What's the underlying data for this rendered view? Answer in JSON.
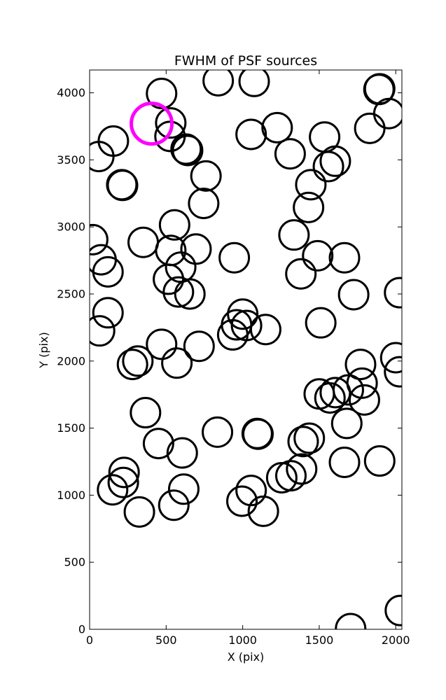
{
  "chart_data": {
    "type": "scatter",
    "title": "FWHM of PSF sources",
    "xlabel": "X (pix)",
    "ylabel": "Y (pix)",
    "xlim": [
      0,
      2040
    ],
    "ylim": [
      0,
      4170
    ],
    "xticks": [
      0,
      500,
      1000,
      1500,
      2000
    ],
    "yticks": [
      0,
      500,
      1000,
      1500,
      2000,
      2500,
      3000,
      3500,
      4000
    ],
    "marker": "open-circle",
    "grid": false,
    "colors": {
      "normal": "#000000",
      "highlight": "#ff00ff"
    },
    "highlight": {
      "x": 405,
      "y": 3770
    },
    "points": [
      [
        470,
        3995
      ],
      [
        840,
        4090
      ],
      [
        1075,
        4085
      ],
      [
        1890,
        4025
      ],
      [
        1895,
        4030
      ],
      [
        155,
        3640
      ],
      [
        60,
        3525
      ],
      [
        525,
        3675
      ],
      [
        530,
        3775
      ],
      [
        630,
        3580
      ],
      [
        640,
        3570
      ],
      [
        1055,
        3690
      ],
      [
        1225,
        3740
      ],
      [
        1310,
        3545
      ],
      [
        1535,
        3670
      ],
      [
        1830,
        3735
      ],
      [
        1955,
        3845
      ],
      [
        1560,
        3450
      ],
      [
        1605,
        3490
      ],
      [
        210,
        3315
      ],
      [
        215,
        3310
      ],
      [
        760,
        3380
      ],
      [
        1445,
        3315
      ],
      [
        745,
        3175
      ],
      [
        1430,
        3145
      ],
      [
        555,
        3015
      ],
      [
        20,
        2905
      ],
      [
        350,
        2885
      ],
      [
        530,
        2825
      ],
      [
        695,
        2835
      ],
      [
        1335,
        2940
      ],
      [
        945,
        2770
      ],
      [
        1490,
        2785
      ],
      [
        1665,
        2770
      ],
      [
        75,
        2755
      ],
      [
        120,
        2665
      ],
      [
        595,
        2700
      ],
      [
        515,
        2610
      ],
      [
        580,
        2515
      ],
      [
        655,
        2500
      ],
      [
        1380,
        2650
      ],
      [
        1725,
        2495
      ],
      [
        2025,
        2510
      ],
      [
        120,
        2360
      ],
      [
        1000,
        2350
      ],
      [
        1025,
        2265
      ],
      [
        960,
        2270
      ],
      [
        1150,
        2235
      ],
      [
        935,
        2195
      ],
      [
        65,
        2225
      ],
      [
        1510,
        2285
      ],
      [
        470,
        2125
      ],
      [
        715,
        2110
      ],
      [
        315,
        2000
      ],
      [
        280,
        1975
      ],
      [
        570,
        1985
      ],
      [
        1770,
        1975
      ],
      [
        2000,
        2025
      ],
      [
        2025,
        1920
      ],
      [
        1780,
        1835
      ],
      [
        1690,
        1785
      ],
      [
        1605,
        1765
      ],
      [
        1500,
        1755
      ],
      [
        1570,
        1725
      ],
      [
        1795,
        1710
      ],
      [
        365,
        1615
      ],
      [
        835,
        1470
      ],
      [
        1095,
        1460
      ],
      [
        1100,
        1455
      ],
      [
        1680,
        1535
      ],
      [
        450,
        1385
      ],
      [
        1395,
        1400
      ],
      [
        1435,
        1425
      ],
      [
        605,
        1315
      ],
      [
        225,
        1170
      ],
      [
        220,
        1095
      ],
      [
        150,
        1040
      ],
      [
        1385,
        1195
      ],
      [
        1315,
        1145
      ],
      [
        1255,
        1130
      ],
      [
        1665,
        1245
      ],
      [
        1895,
        1255
      ],
      [
        615,
        1045
      ],
      [
        1055,
        1035
      ],
      [
        995,
        955
      ],
      [
        550,
        925
      ],
      [
        325,
        875
      ],
      [
        1135,
        880
      ],
      [
        1705,
        5
      ],
      [
        2030,
        140
      ]
    ]
  }
}
